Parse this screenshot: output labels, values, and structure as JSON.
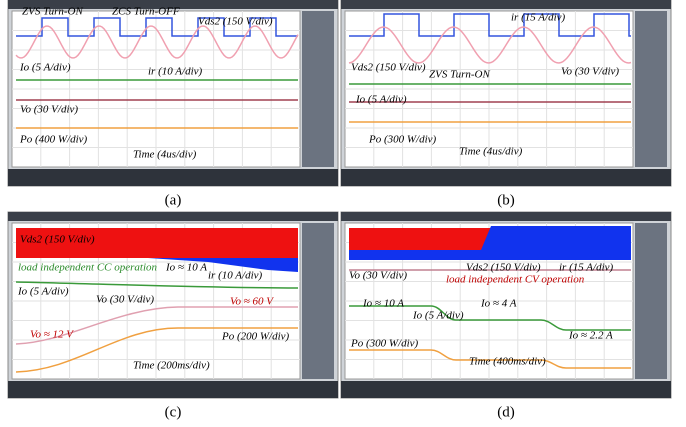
{
  "panels": [
    {
      "caption": "(a)",
      "labels": [
        "ZVS Turn-ON",
        "ZCS Turn-OFF",
        "Vds2 (150 V/div)",
        "ir (10 A/div)",
        "Io (5 A/div)",
        "Vo (30 V/div)",
        "Po (400 W/div)",
        "Time (4us/div)"
      ]
    },
    {
      "caption": "(b)",
      "labels": [
        "ir (15 A/div)",
        "Vds2 (150 V/div)",
        "ZVS Turn-ON",
        "Vo (30 V/div)",
        "Io (5 A/div)",
        "Po (300 W/div)",
        "Time (4us/div)"
      ]
    },
    {
      "caption": "(c)",
      "labels": [
        "Vds2 (150 V/div)",
        "load independent CC operation",
        "Io ≈ 10 A",
        "ir (10 A/div)",
        "Io (5 A/div)",
        "Vo (30 V/div)",
        "Vo ≈ 60 V",
        "Vo ≈ 12 V",
        "Po (200 W/div)",
        "Time (200ms/div)"
      ]
    },
    {
      "caption": "(d)",
      "labels": [
        "Vo (30 V/div)",
        "Vds2 (150 V/div)",
        "ir (15 A/div)",
        "load independent CV operation",
        "Io ≈ 10 A",
        "Io (5 A/div)",
        "Io ≈ 4 A",
        "Io ≈ 2.2 A",
        "Po (300 W/div)",
        "Time (400ms/div)"
      ]
    }
  ]
}
